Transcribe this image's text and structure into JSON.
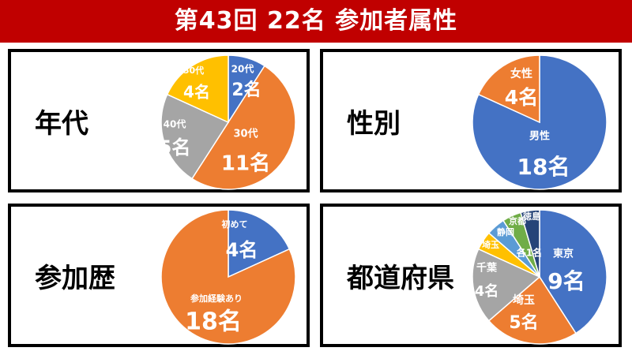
{
  "header": {
    "title": "第43回 22名 参加者属性"
  },
  "colors": {
    "blue": "#4472c4",
    "orange": "#ed7d31",
    "gray": "#a5a5a5",
    "yellow": "#ffc000",
    "lightblue": "#5b9bd5",
    "green": "#70ad47",
    "navy": "#264478",
    "header_red": "#c00000"
  },
  "chart_data": [
    {
      "type": "pie",
      "title": "年代",
      "slices": [
        {
          "category": "20代",
          "value": 2,
          "value_label": "2名",
          "color": "#4472c4"
        },
        {
          "category": "30代",
          "value": 11,
          "value_label": "11名",
          "color": "#ed7d31"
        },
        {
          "category": "40代",
          "value": 5,
          "value_label": "5名",
          "color": "#a5a5a5"
        },
        {
          "category": "50代",
          "value": 4,
          "value_label": "4名",
          "color": "#ffc000"
        }
      ]
    },
    {
      "type": "pie",
      "title": "性別",
      "slices": [
        {
          "category": "男性",
          "value": 18,
          "value_label": "18名",
          "color": "#4472c4"
        },
        {
          "category": "女性",
          "value": 4,
          "value_label": "4名",
          "color": "#ed7d31"
        }
      ]
    },
    {
      "type": "pie",
      "title": "参加歴",
      "slices": [
        {
          "category": "初めて",
          "value": 4,
          "value_label": "4名",
          "color": "#4472c4"
        },
        {
          "category": "参加経験あり",
          "value": 18,
          "value_label": "18名",
          "color": "#ed7d31"
        }
      ]
    },
    {
      "type": "pie",
      "title": "都道府県",
      "slices": [
        {
          "category": "東京",
          "value": 9,
          "value_label": "9名",
          "color": "#4472c4"
        },
        {
          "category": "埼玉",
          "value": 5,
          "value_label": "5名",
          "color": "#ed7d31"
        },
        {
          "category": "千葉",
          "value": 4,
          "value_label": "4名",
          "color": "#a5a5a5"
        },
        {
          "category": "埼玉",
          "value": 1,
          "value_label": "",
          "color": "#ffc000"
        },
        {
          "category": "静岡",
          "value": 1,
          "value_label": "",
          "color": "#5b9bd5"
        },
        {
          "category": "京都",
          "value": 1,
          "value_label": "",
          "color": "#70ad47"
        },
        {
          "category": "徳島",
          "value": 1,
          "value_label": "",
          "color": "#264478"
        }
      ],
      "annotation": "各1名"
    }
  ]
}
